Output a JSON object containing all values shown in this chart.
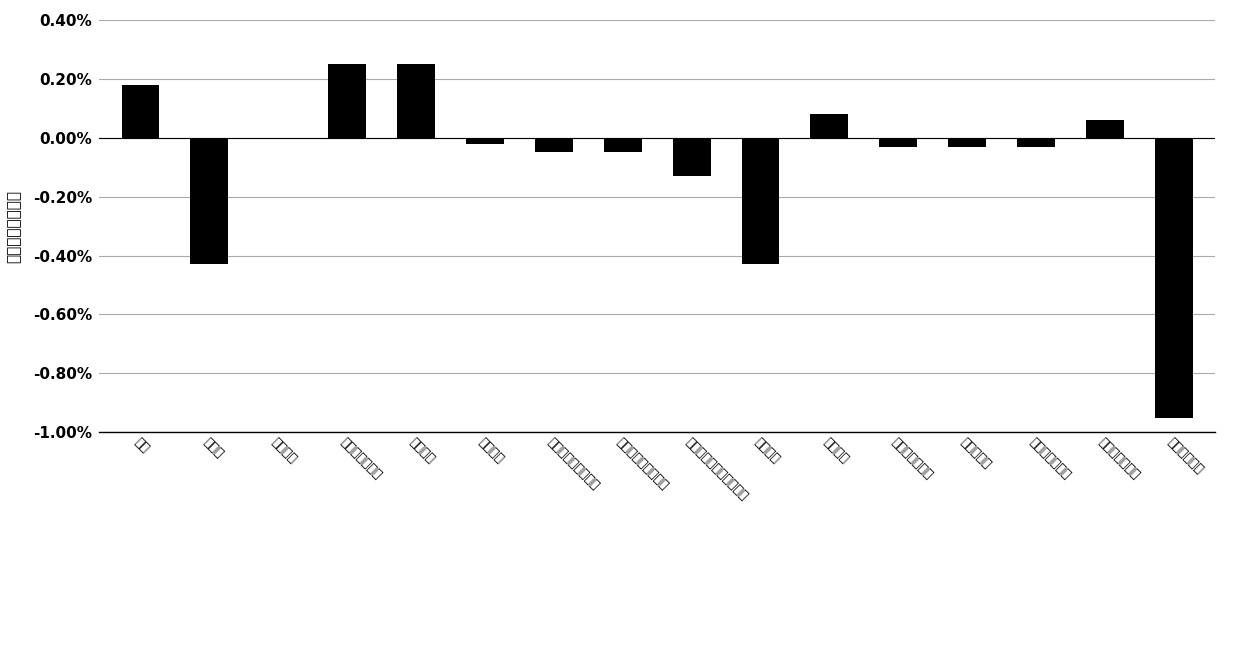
{
  "categories": [
    "推力",
    "燃油量",
    "风扇道比",
    "核心风扇级道比",
    "中浵道比",
    "总浵道比",
    "中浵道总压恢复系数",
    "后浵道总压恢复系数",
    "涔轮后机区总压恢复系数",
    "燃油流量",
    "风扇压比",
    "核心风扇级压比",
    "压气机压比",
    "高压涔轮落压比",
    "低压涔轮落压比",
    "喷管喉部面积"
  ],
  "values": [
    0.0018,
    -0.0043,
    0.0,
    0.0025,
    0.0025,
    -0.0002,
    -0.0005,
    -0.0005,
    -0.0013,
    -0.0043,
    0.0008,
    -0.0003,
    -0.0003,
    -0.0003,
    0.0006,
    -0.0095
  ],
  "bar_color": "#000000",
  "ylabel": "主要参数相对误差",
  "ylim_min": -0.01,
  "ylim_max": 0.004,
  "yticks": [
    -0.01,
    -0.008,
    -0.006,
    -0.004,
    -0.002,
    0.0,
    0.002,
    0.004
  ],
  "ytick_labels": [
    "-1.00%",
    "-0.80%",
    "-0.60%",
    "-0.40%",
    "-0.20%",
    "0.00%",
    "0.20%",
    "0.40%"
  ],
  "background_color": "#ffffff",
  "grid_color": "#aaaaaa",
  "bar_width": 0.55,
  "xlabel_fontsize": 9,
  "ylabel_fontsize": 11,
  "ytick_fontsize": 11
}
